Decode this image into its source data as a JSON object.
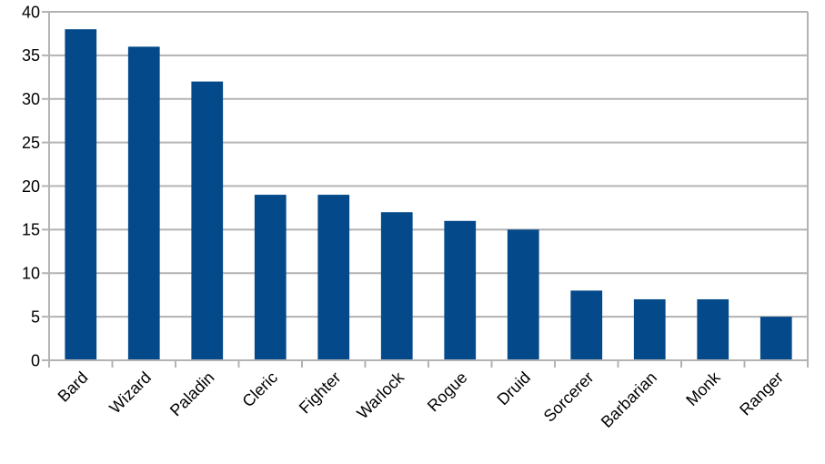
{
  "chart_data": {
    "type": "bar",
    "title": "",
    "xlabel": "",
    "ylabel": "",
    "categories": [
      "Bard",
      "Wizard",
      "Paladin",
      "Cleric",
      "Fighter",
      "Warlock",
      "Rogue",
      "Druid",
      "Sorcerer",
      "Barbarian",
      "Monk",
      "Ranger"
    ],
    "values": [
      38,
      36,
      32,
      19,
      19,
      17,
      16,
      15,
      8,
      7,
      7,
      5
    ],
    "ylim": [
      0,
      40
    ],
    "ytick_step": 5,
    "ytick_labels": [
      "0",
      "5",
      "10",
      "15",
      "20",
      "25",
      "30",
      "35",
      "40"
    ],
    "grid": "horizontal",
    "legend": "none",
    "x_label_rotation_deg": 45,
    "colors": {
      "bar": "#04498a",
      "grid": "#b3b3b3",
      "axis": "#b3b3b3",
      "text": "#000000",
      "background": "#ffffff"
    }
  }
}
